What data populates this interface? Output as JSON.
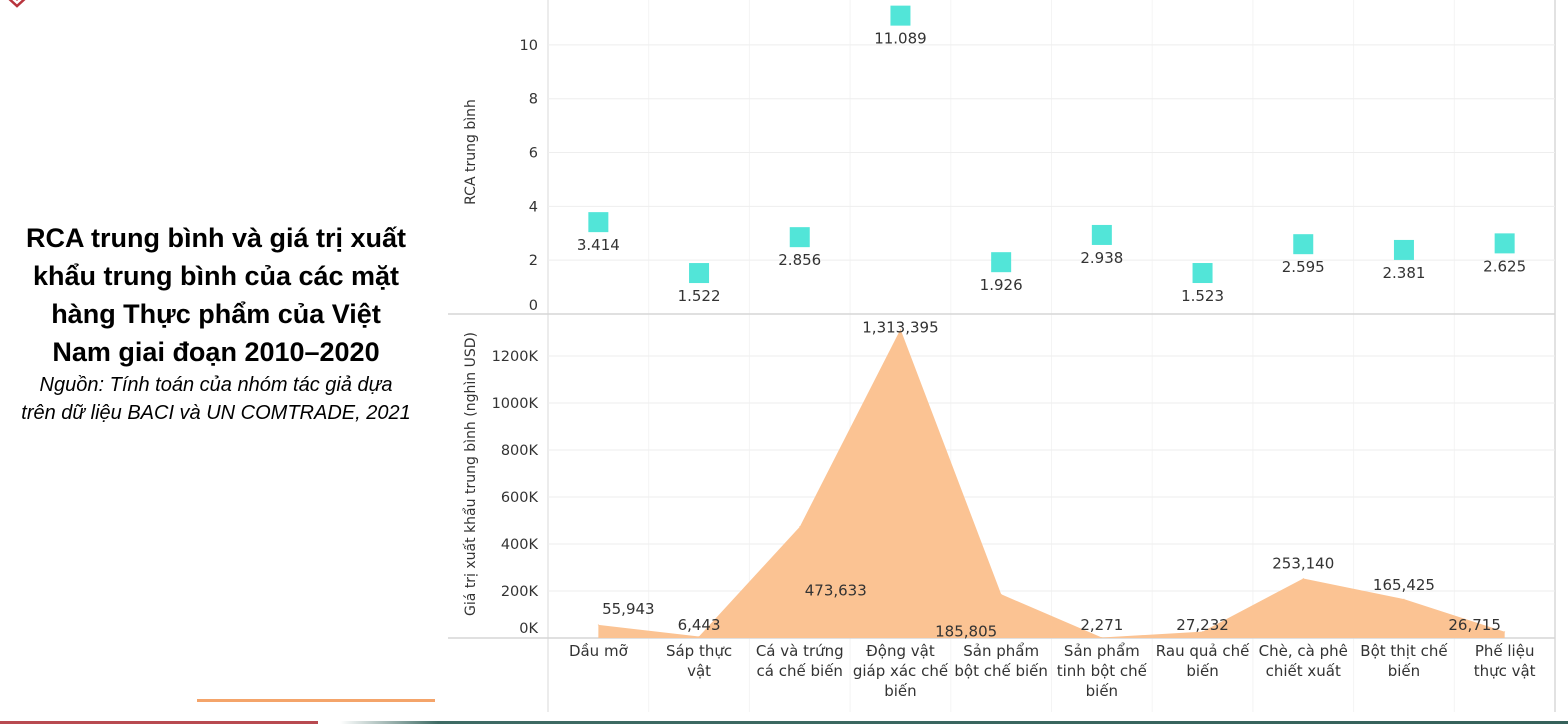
{
  "title": {
    "lines": [
      "RCA trung bình và giá trị xuất",
      "khẩu trung bình của các mặt",
      "hàng Thực phẩm của Việt",
      "Nam giai đoạn 2010–2020"
    ],
    "source_lines": [
      "Nguồn: Tính toán của nhóm tác giả dựa",
      "trên dữ liệu BACI và UN COMTRADE, 2021"
    ]
  },
  "colors": {
    "rca_marker": "#52E5D8",
    "export_area": "#FBC393",
    "logo": "#B8343D",
    "accent_rule": "#F4A46A",
    "footer_red": "#B84A50",
    "footer_teal": "#35615A"
  },
  "chart_data": [
    {
      "type": "scatter",
      "mark": "square",
      "title": "",
      "xlabel": "",
      "ylabel": "RCA trung bình",
      "ylim": [
        0,
        11.67
      ],
      "yticks": [
        "0",
        "2",
        "4",
        "6",
        "8",
        "10"
      ],
      "ytick_values": [
        0,
        2,
        4,
        6,
        8,
        10
      ],
      "grid": true,
      "categories": [
        "Dầu mỡ",
        "Sáp thực vật",
        "Cá và trứng cá chế biến",
        "Động vật giáp xác chế biến",
        "Sản phẩm bột chế biến",
        "Sản phẩm tinh bột chế biến",
        "Rau quả chế biến",
        "Chè, cà phê chiết xuất",
        "Bột thịt chế biến",
        "Phế liệu thực vật"
      ],
      "values": [
        3.414,
        1.522,
        2.856,
        11.089,
        1.926,
        2.938,
        1.523,
        2.595,
        2.381,
        2.625
      ],
      "data_labels": [
        "3.414",
        "1.522",
        "2.856",
        "11.089",
        "1.926",
        "2.938",
        "1.523",
        "2.595",
        "2.381",
        "2.625"
      ]
    },
    {
      "type": "area",
      "title": "",
      "xlabel": "",
      "ylabel": "Giá trị xuất khẩu trung bình (nghìn USD)",
      "ylim": [
        0,
        1370000
      ],
      "yticks": [
        "0K",
        "200K",
        "400K",
        "600K",
        "800K",
        "1000K",
        "1200K"
      ],
      "ytick_values": [
        0,
        200000,
        400000,
        600000,
        800000,
        1000000,
        1200000
      ],
      "grid": true,
      "categories": [
        "Dầu mỡ",
        "Sáp thực vật",
        "Cá và trứng cá chế biến",
        "Động vật giáp xác chế biến",
        "Sản phẩm bột chế biến",
        "Sản phẩm tinh bột chế biến",
        "Rau quả chế biến",
        "Chè, cà phê chiết xuất",
        "Bột thịt chế biến",
        "Phế liệu thực vật"
      ],
      "category_label_lines": [
        [
          "Dầu mỡ"
        ],
        [
          "Sáp thực",
          "vật"
        ],
        [
          "Cá và trứng",
          "cá chế biến"
        ],
        [
          "Động vật",
          "giáp xác chế",
          "biến"
        ],
        [
          "Sản phẩm",
          "bột chế biến"
        ],
        [
          "Sản phẩm",
          "tinh bột chế",
          "biến"
        ],
        [
          "Rau quả chế",
          "biến"
        ],
        [
          "Chè, cà phê",
          "chiết xuất"
        ],
        [
          "Bột thịt chế",
          "biến"
        ],
        [
          "Phế liệu",
          "thực vật"
        ]
      ],
      "values": [
        55943,
        6443,
        473633,
        1313395,
        185805,
        2271,
        27232,
        253140,
        165425,
        26715
      ],
      "data_labels": [
        "55,943",
        "6,443",
        "473,633",
        "1,313,395",
        "185,805",
        "2,271",
        "27,232",
        "253,140",
        "165,425",
        "26,715"
      ]
    }
  ]
}
